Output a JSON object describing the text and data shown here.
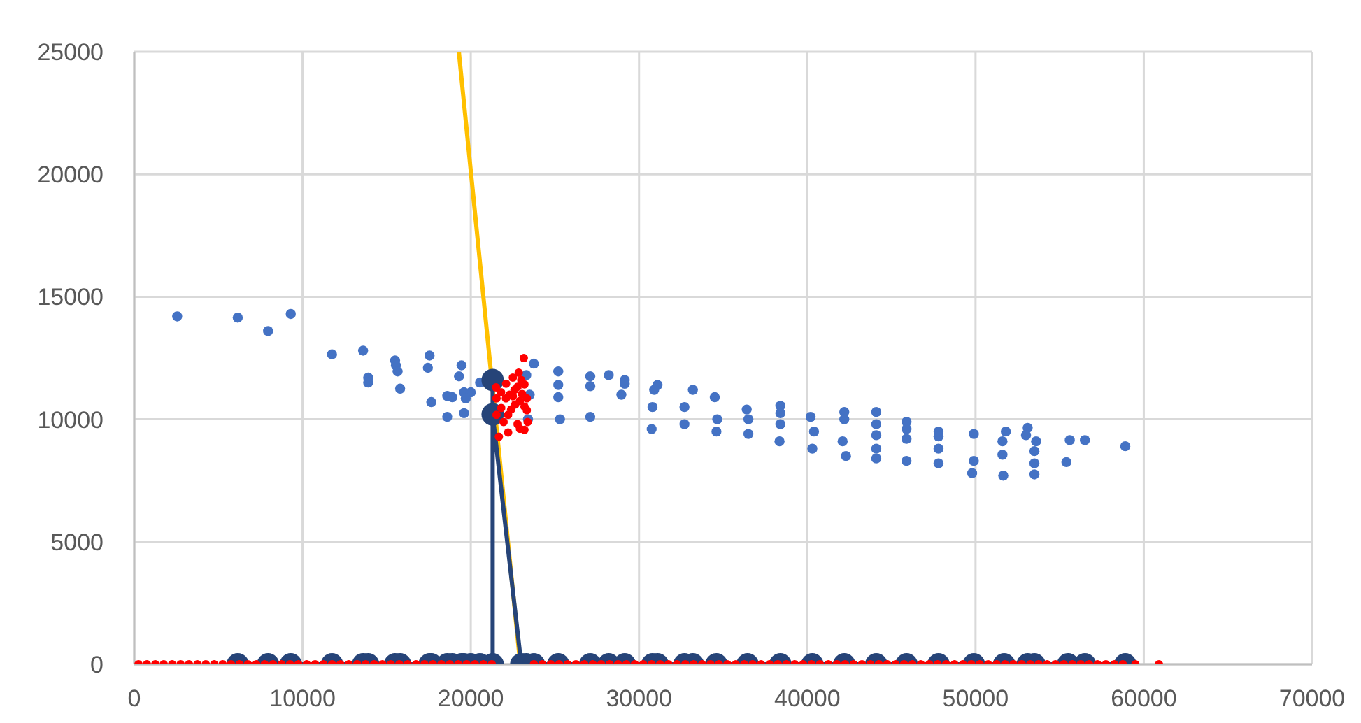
{
  "chart_data": {
    "type": "scatter",
    "xlim": [
      0,
      70000
    ],
    "xticks": [
      0,
      10000,
      20000,
      30000,
      40000,
      50000,
      60000,
      70000
    ],
    "ylim": [
      0,
      25000
    ],
    "yticks": [
      0,
      5000,
      10000,
      15000,
      20000,
      25000
    ],
    "grid": true,
    "marker": "circle",
    "series": [
      {
        "color": "#4472c4",
        "x": [
          2550,
          6150,
          7950,
          9300,
          11750,
          13600,
          13900,
          13900,
          15500,
          15550,
          15650,
          15800,
          17550,
          17450,
          17650,
          18600,
          19450,
          19300,
          18600,
          18900,
          19600,
          19600,
          20000,
          19700,
          20550,
          23300,
          23500,
          23400,
          23750,
          25200,
          25200,
          25200,
          25300,
          27100,
          27100,
          27100,
          28200,
          29150,
          29150,
          28950,
          31100,
          30900,
          30800,
          30750,
          33200,
          32700,
          32700,
          34500,
          34650,
          34600,
          36400,
          36500,
          36500,
          38400,
          38400,
          38400,
          38350,
          40200,
          40400,
          40300,
          42200,
          42200,
          42100,
          42300,
          44100,
          44100,
          44100,
          44100,
          44100,
          45900,
          45900,
          45900,
          45900,
          47800,
          47800,
          47800,
          47800,
          49900,
          49900,
          49800,
          51800,
          51600,
          51600,
          51650,
          53100,
          53000,
          53600,
          53500,
          53500,
          53500,
          55600,
          55400,
          56500,
          58900
        ],
        "values": [
          14200,
          14150,
          13600,
          14300,
          12650,
          12800,
          11700,
          11500,
          12400,
          12200,
          11950,
          11250,
          12600,
          12100,
          10700,
          10100,
          12200,
          11750,
          10950,
          10900,
          11100,
          10250,
          11100,
          10850,
          11500,
          11800,
          11000,
          10000,
          12270,
          11950,
          11400,
          10900,
          10000,
          11750,
          11350,
          10100,
          11800,
          11600,
          11450,
          11000,
          11400,
          11200,
          10500,
          9600,
          11200,
          10500,
          9800,
          10900,
          10000,
          9500,
          10400,
          10000,
          9400,
          10550,
          10250,
          9800,
          9100,
          10100,
          9500,
          8800,
          10300,
          10000,
          9100,
          8500,
          10300,
          9800,
          9350,
          8800,
          8400,
          9900,
          9600,
          9200,
          8300,
          9500,
          9300,
          8800,
          8200,
          9400,
          8300,
          7800,
          9500,
          9100,
          8550,
          7700,
          9650,
          9350,
          9100,
          8700,
          8200,
          7750,
          9150,
          8250,
          9150,
          8900
        ]
      },
      {
        "type": "line",
        "color": "#ffc000",
        "marker": "none",
        "x": [
          19290,
          22940
        ],
        "values": [
          25000,
          0
        ]
      },
      {
        "type": "line",
        "color": "#264478",
        "marker": "circle",
        "x": [
          6150,
          7950,
          9300,
          11750,
          13600,
          13900,
          15500,
          15800,
          17550,
          17650,
          18600,
          18900,
          19450,
          19600,
          20000,
          20550,
          21300,
          21300,
          21300,
          23000,
          23300,
          23750,
          25200,
          27100,
          28200,
          29150,
          30800,
          31100,
          32700,
          33200,
          34600,
          36450,
          38400,
          40300,
          42200,
          44100,
          45900,
          47800,
          49900,
          51700,
          53100,
          53500,
          55500,
          56500,
          58900
        ],
        "values": [
          0,
          0,
          0,
          0,
          0,
          0,
          0,
          0,
          0,
          0,
          0,
          0,
          0,
          0,
          0,
          0,
          0,
          11600,
          10200,
          0,
          0,
          0,
          0,
          0,
          0,
          0,
          0,
          0,
          0,
          0,
          0,
          0,
          0,
          0,
          0,
          0,
          0,
          0,
          0,
          0,
          0,
          0,
          0,
          0,
          0
        ]
      },
      {
        "color": "#ff0000",
        "x": [
          23150,
          22850,
          22500,
          22100,
          21500,
          22780,
          23190,
          23050,
          22500,
          22920,
          23330,
          22090,
          21530,
          21810,
          22640,
          23190,
          22220,
          21530,
          21950,
          22780,
          23330,
          23380,
          23190,
          22220,
          21670,
          22920,
          22600,
          22300,
          23000,
          22400,
          21800,
          250,
          750,
          1250,
          1750,
          2250,
          2750,
          3250,
          3750,
          4250,
          4750,
          5250,
          5750,
          6250,
          6750,
          7250,
          7750,
          8250,
          8750,
          9250,
          9750,
          10250,
          10750,
          11250,
          11750,
          12250,
          12750,
          13250,
          13750,
          14250,
          14750,
          15250,
          15750,
          16250,
          16750,
          17250,
          17750,
          18250,
          18750,
          19250,
          19750,
          20250,
          20750,
          21250,
          23750,
          24250,
          24750,
          25250,
          25750,
          26250,
          26750,
          27250,
          27750,
          28250,
          28750,
          29250,
          29750,
          30250,
          30750,
          31250,
          31750,
          32250,
          32750,
          33250,
          33750,
          34250,
          34750,
          35250,
          35750,
          36250,
          36750,
          37250,
          37750,
          38250,
          38750,
          39250,
          39750,
          40250,
          40750,
          41250,
          41750,
          42250,
          42750,
          43250,
          43750,
          44250,
          44750,
          45250,
          45750,
          46250,
          46750,
          47250,
          47750,
          48250,
          48750,
          49250,
          49750,
          50250,
          50750,
          51250,
          51750,
          52250,
          52750,
          53250,
          53750,
          54250,
          54750,
          55250,
          55750,
          56250,
          56750,
          57250,
          57750,
          58250,
          58750,
          59500,
          60900
        ],
        "values": [
          12500,
          11900,
          11700,
          11450,
          11300,
          11320,
          11420,
          11030,
          10940,
          10750,
          10850,
          10850,
          10850,
          10460,
          10600,
          10520,
          10180,
          10180,
          9890,
          9800,
          10370,
          9890,
          9570,
          9460,
          9290,
          9610,
          11200,
          11000,
          11600,
          10400,
          11100,
          0,
          0,
          0,
          0,
          0,
          0,
          0,
          0,
          0,
          0,
          0,
          0,
          0,
          0,
          0,
          0,
          0,
          0,
          0,
          0,
          0,
          0,
          0,
          0,
          0,
          0,
          0,
          0,
          0,
          0,
          0,
          0,
          0,
          0,
          0,
          0,
          0,
          0,
          0,
          0,
          0,
          0,
          0,
          0,
          0,
          0,
          0,
          0,
          0,
          0,
          0,
          0,
          0,
          0,
          0,
          0,
          0,
          0,
          0,
          0,
          0,
          0,
          0,
          0,
          0,
          0,
          0,
          0,
          0,
          0,
          0,
          0,
          0,
          0,
          0,
          0,
          0,
          0,
          0,
          0,
          0,
          0,
          0,
          0,
          0,
          0,
          0,
          0,
          0,
          0,
          0,
          0,
          0,
          0,
          0,
          0,
          0,
          0,
          0,
          0,
          0,
          0,
          0,
          0,
          0,
          0,
          0,
          0,
          0,
          0,
          0,
          0,
          0,
          0,
          0,
          0
        ]
      }
    ]
  }
}
